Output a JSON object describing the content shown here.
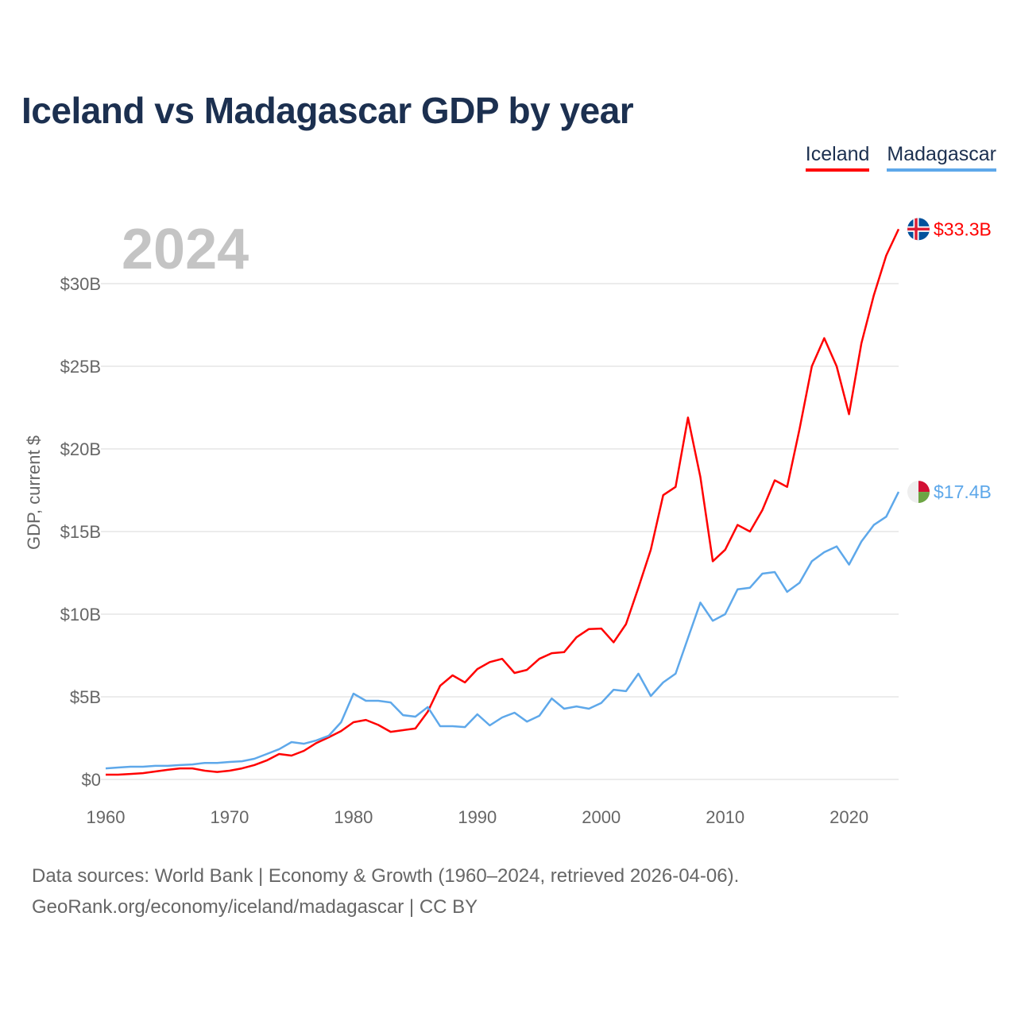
{
  "title": "Iceland vs Madagascar GDP by year",
  "year_label": "2024",
  "footer": {
    "line1": "Data sources: World Bank | Economy & Growth (1960–2024, retrieved 2026-04-06).",
    "line2": "GeoRank.org/economy/iceland/madagascar | CC BY"
  },
  "chart_data": {
    "type": "line",
    "title": "Iceland vs Madagascar GDP by year",
    "xlabel": "",
    "ylabel": "GDP, current $",
    "xlim": [
      1960,
      2024
    ],
    "ylim": [
      0,
      32
    ],
    "grid": true,
    "legend_placement": "top-right",
    "x_ticks": [
      1960,
      1970,
      1980,
      1990,
      2000,
      2010,
      2020
    ],
    "y_ticks": [
      0,
      5,
      10,
      15,
      20,
      25,
      30
    ],
    "y_tick_labels": [
      "$0",
      "$5B",
      "$10B",
      "$15B",
      "$20B",
      "$25B",
      "$30B"
    ],
    "x": [
      1960,
      1961,
      1962,
      1963,
      1964,
      1965,
      1966,
      1967,
      1968,
      1969,
      1970,
      1971,
      1972,
      1973,
      1974,
      1975,
      1976,
      1977,
      1978,
      1979,
      1980,
      1981,
      1982,
      1983,
      1984,
      1985,
      1986,
      1987,
      1988,
      1989,
      1990,
      1991,
      1992,
      1993,
      1994,
      1995,
      1996,
      1997,
      1998,
      1999,
      2000,
      2001,
      2002,
      2003,
      2004,
      2005,
      2006,
      2007,
      2008,
      2009,
      2010,
      2011,
      2012,
      2013,
      2014,
      2015,
      2016,
      2017,
      2018,
      2019,
      2020,
      2021,
      2022,
      2023,
      2024
    ],
    "series": [
      {
        "name": "Iceland",
        "color": "#ff0000",
        "end_label": "$33.3B",
        "values": [
          0.29,
          0.29,
          0.33,
          0.38,
          0.48,
          0.58,
          0.67,
          0.67,
          0.53,
          0.45,
          0.53,
          0.67,
          0.87,
          1.15,
          1.54,
          1.44,
          1.73,
          2.2,
          2.55,
          2.93,
          3.46,
          3.6,
          3.3,
          2.88,
          2.98,
          3.08,
          4.1,
          5.67,
          6.3,
          5.87,
          6.68,
          7.1,
          7.3,
          6.44,
          6.63,
          7.3,
          7.64,
          7.7,
          8.6,
          9.1,
          9.13,
          8.3,
          9.4,
          11.6,
          13.9,
          17.2,
          17.7,
          21.9,
          18.3,
          13.2,
          13.9,
          15.4,
          15.0,
          16.3,
          18.1,
          17.7,
          21.2,
          25.0,
          26.7,
          25.0,
          22.1,
          26.4,
          29.3,
          31.7,
          33.3
        ]
      },
      {
        "name": "Madagascar",
        "color": "#5ea8ea",
        "end_label": "$17.4B",
        "values": [
          0.67,
          0.72,
          0.77,
          0.77,
          0.82,
          0.82,
          0.87,
          0.91,
          1.0,
          1.0,
          1.06,
          1.1,
          1.25,
          1.54,
          1.83,
          2.26,
          2.16,
          2.36,
          2.64,
          3.46,
          5.19,
          4.76,
          4.76,
          4.66,
          3.89,
          3.8,
          4.38,
          3.22,
          3.22,
          3.17,
          3.94,
          3.27,
          3.75,
          4.04,
          3.5,
          3.85,
          4.9,
          4.28,
          4.42,
          4.28,
          4.63,
          5.43,
          5.34,
          6.4,
          5.05,
          5.87,
          6.4,
          8.56,
          10.7,
          9.6,
          10.0,
          11.5,
          11.6,
          12.45,
          12.55,
          11.35,
          11.9,
          13.2,
          13.75,
          14.1,
          13.0,
          14.4,
          15.4,
          15.9,
          17.4
        ]
      }
    ]
  }
}
